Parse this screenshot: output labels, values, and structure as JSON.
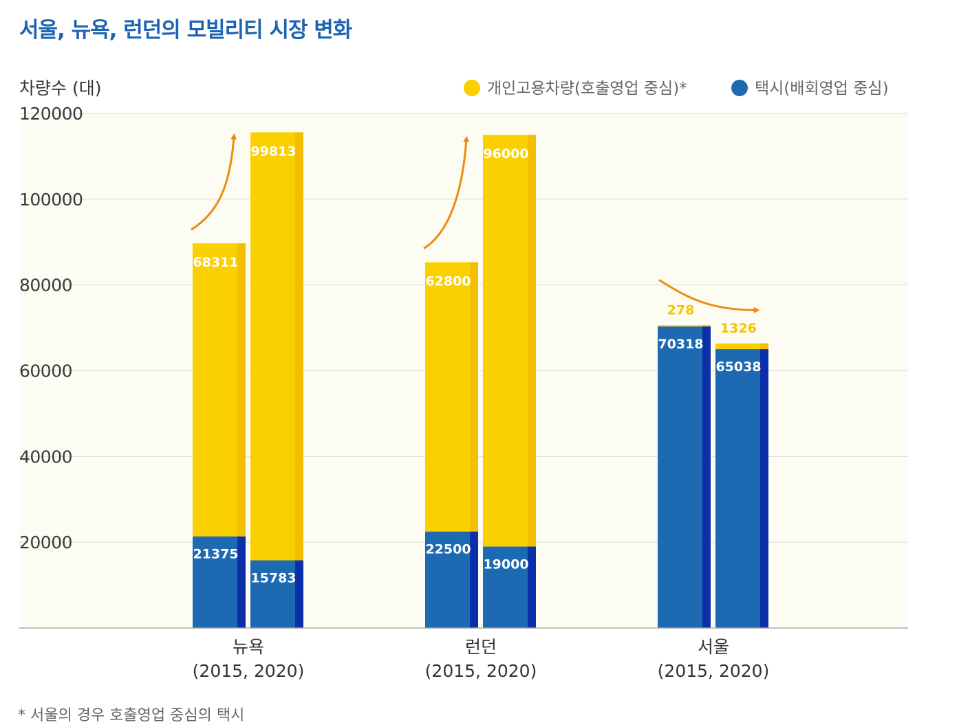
{
  "colors": {
    "title": "#1d63b3",
    "plot_bg": "#fdfcf3",
    "grid": "#dddddd",
    "private": "#fbd000",
    "private_edge": "#f3bf00",
    "taxi": "#1d6ab3",
    "taxi_edge": "#0a2fa8",
    "arrow": "#ef8a10"
  },
  "chart_data": {
    "type": "bar",
    "stacked": true,
    "title": "서울, 뉴욕, 런던의 모빌리티 시장 변화",
    "ylabel": "차량수 (대)",
    "ylim": [
      0,
      120000
    ],
    "yticks": [
      "120000",
      "100000",
      "80000",
      "60000",
      "40000",
      "20000"
    ],
    "grid": true,
    "legend_position": "top-right",
    "legend": [
      {
        "label": "개인고용차량(호출영업 중심)*",
        "color": "#fbd000"
      },
      {
        "label": "택시(배회영업 중심)",
        "color": "#1d6ab3"
      }
    ],
    "groups": [
      {
        "label": "뉴욕",
        "sublabel": "(2015, 2020)",
        "trend": "up"
      },
      {
        "label": "런던",
        "sublabel": "(2015, 2020)",
        "trend": "up"
      },
      {
        "label": "서울",
        "sublabel": "(2015, 2020)",
        "trend": "down"
      }
    ],
    "categories": [
      "뉴욕 2015",
      "뉴욕 2020",
      "런던 2015",
      "런던 2020",
      "서울 2015",
      "서울 2020"
    ],
    "series": [
      {
        "name": "택시(배회영업 중심)",
        "values": [
          21375,
          15783,
          22500,
          19000,
          70318,
          65038
        ],
        "labels": [
          "21375",
          "15783",
          "22500",
          "19000",
          "70318",
          "65038"
        ]
      },
      {
        "name": "개인고용차량(호출영업 중심)*",
        "values": [
          68311,
          99813,
          62800,
          96000,
          278,
          1326
        ],
        "labels": [
          "68311",
          "99813",
          "62800",
          "96000",
          "278",
          "1326"
        ]
      }
    ],
    "footnote": "* 서울의 경우 호출영업 중심의 택시"
  }
}
